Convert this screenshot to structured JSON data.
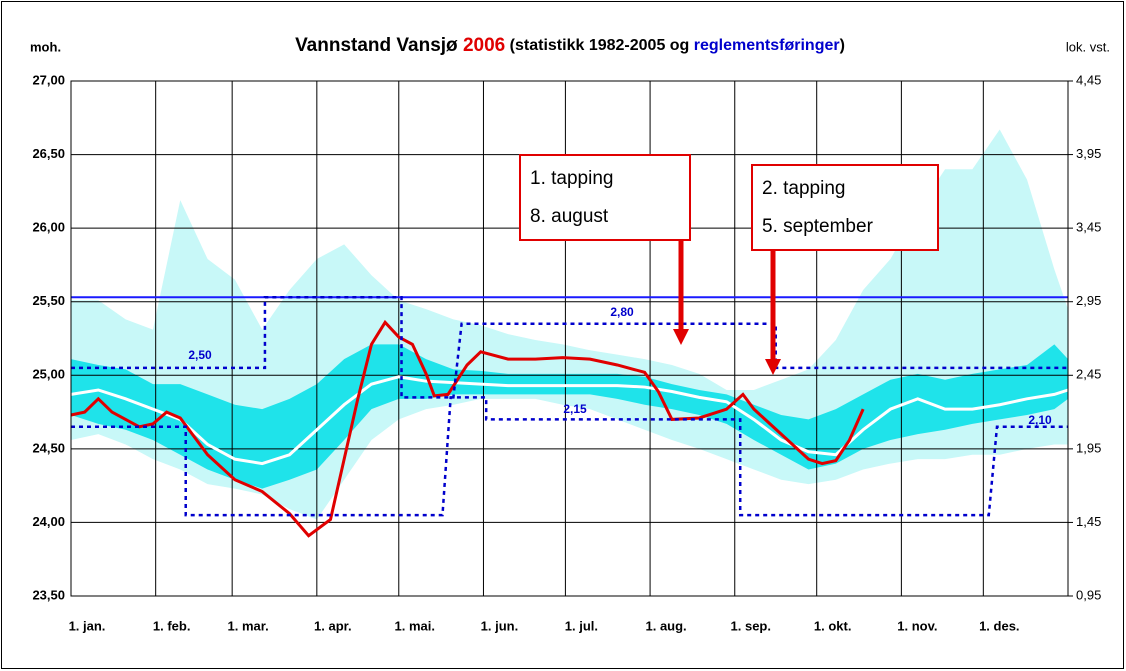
{
  "chart_data": {
    "type": "line",
    "title": [
      "Vannstand Vansjø ",
      "2006",
      " (statistikk 1982-2005 og ",
      "reglementsføringer",
      ")"
    ],
    "title_colors": [
      "#000000",
      "#e00000",
      "#000000",
      "#0000cc",
      "#000000"
    ],
    "ylabel": "moh.",
    "y2label": "lok. vst.",
    "xlim": [
      0,
      365
    ],
    "xticks": [
      {
        "value": 0,
        "label": "1. jan."
      },
      {
        "value": 31,
        "label": "1. feb."
      },
      {
        "value": 59,
        "label": "1. mar."
      },
      {
        "value": 90,
        "label": "1. apr."
      },
      {
        "value": 120,
        "label": "1. mai."
      },
      {
        "value": 151,
        "label": "1. jun."
      },
      {
        "value": 181,
        "label": "1. jul."
      },
      {
        "value": 212,
        "label": "1. aug."
      },
      {
        "value": 243,
        "label": "1. sep."
      },
      {
        "value": 273,
        "label": "1. okt."
      },
      {
        "value": 304,
        "label": "1. nov."
      },
      {
        "value": 334,
        "label": "1. des."
      }
    ],
    "ylim": [
      23.5,
      27
    ],
    "yticks": [
      {
        "value": 23.5,
        "label": "23,50"
      },
      {
        "value": 24,
        "label": "24,00"
      },
      {
        "value": 24.5,
        "label": "24,50"
      },
      {
        "value": 25,
        "label": "25,00"
      },
      {
        "value": 25.5,
        "label": "25,50"
      },
      {
        "value": 26,
        "label": "26,00"
      },
      {
        "value": 26.5,
        "label": "26,50"
      },
      {
        "value": 27,
        "label": "27,00"
      }
    ],
    "y2lim": [
      0.95,
      4.45
    ],
    "y2ticks": [
      {
        "value": 0.95,
        "label": "0,95"
      },
      {
        "value": 1.45,
        "label": "1,45"
      },
      {
        "value": 1.95,
        "label": "1,95"
      },
      {
        "value": 2.45,
        "label": "2,45"
      },
      {
        "value": 2.95,
        "label": "2,95"
      },
      {
        "value": 3.45,
        "label": "3,45"
      },
      {
        "value": 3.95,
        "label": "3,95"
      },
      {
        "value": 4.45,
        "label": "4,45"
      }
    ],
    "grid": true,
    "band_x": [
      0,
      10,
      20,
      30,
      40,
      50,
      60,
      70,
      80,
      90,
      100,
      110,
      120,
      130,
      140,
      150,
      160,
      170,
      180,
      190,
      200,
      210,
      220,
      230,
      240,
      250,
      260,
      270,
      280,
      290,
      300,
      310,
      320,
      330,
      340,
      350,
      360,
      365
    ],
    "bands": [
      {
        "color": "#c8f8f8",
        "upper": [
          25.51,
          25.51,
          25.38,
          25.31,
          26.19,
          25.79,
          25.65,
          25.31,
          25.58,
          25.79,
          25.89,
          25.68,
          25.51,
          25.45,
          25.38,
          25.34,
          25.28,
          25.24,
          25.21,
          25.17,
          25.14,
          25.11,
          25.07,
          25.01,
          24.9,
          24.9,
          24.97,
          25.04,
          25.24,
          25.58,
          25.79,
          26.12,
          26.4,
          26.4,
          26.67,
          26.33,
          25.72,
          25.45
        ],
        "lower": [
          24.56,
          24.6,
          24.53,
          24.43,
          24.36,
          24.26,
          24.23,
          24.19,
          24.09,
          24.02,
          24.29,
          24.56,
          24.7,
          24.77,
          24.8,
          24.84,
          24.84,
          24.84,
          24.8,
          24.77,
          24.7,
          24.63,
          24.56,
          24.5,
          24.43,
          24.36,
          24.29,
          24.26,
          24.29,
          24.36,
          24.4,
          24.43,
          24.43,
          24.46,
          24.46,
          24.5,
          24.53,
          24.53
        ]
      },
      {
        "color": "#1fe3ea",
        "upper": [
          25.11,
          25.07,
          25.04,
          24.94,
          24.94,
          24.87,
          24.8,
          24.77,
          24.84,
          24.94,
          25.11,
          25.21,
          25.21,
          25.11,
          25.04,
          25.03,
          25.01,
          25.01,
          25.01,
          25.01,
          25.01,
          24.99,
          24.94,
          24.9,
          24.87,
          24.8,
          24.73,
          24.7,
          24.77,
          24.87,
          24.97,
          25.01,
          24.97,
          25.01,
          25.04,
          25.07,
          25.21,
          25.11
        ],
        "lower": [
          24.73,
          24.67,
          24.63,
          24.56,
          24.46,
          24.36,
          24.29,
          24.23,
          24.29,
          24.36,
          24.56,
          24.77,
          24.84,
          24.84,
          24.87,
          24.87,
          24.87,
          24.87,
          24.87,
          24.87,
          24.84,
          24.8,
          24.77,
          24.73,
          24.67,
          24.56,
          24.46,
          24.36,
          24.4,
          24.5,
          24.56,
          24.6,
          24.63,
          24.67,
          24.7,
          24.73,
          24.77,
          24.84
        ]
      }
    ],
    "series": [
      {
        "color": "#ffffff",
        "width": 3,
        "x": [
          0,
          10,
          20,
          30,
          40,
          50,
          60,
          70,
          80,
          90,
          100,
          110,
          120,
          130,
          140,
          150,
          160,
          170,
          180,
          190,
          200,
          210,
          220,
          230,
          240,
          250,
          260,
          270,
          280,
          290,
          300,
          310,
          320,
          330,
          340,
          350,
          360,
          365
        ],
        "values": [
          24.87,
          24.9,
          24.84,
          24.77,
          24.7,
          24.53,
          24.43,
          24.4,
          24.46,
          24.63,
          24.8,
          24.94,
          24.99,
          24.96,
          24.95,
          24.94,
          24.93,
          24.93,
          24.93,
          24.93,
          24.93,
          24.92,
          24.89,
          24.85,
          24.82,
          24.7,
          24.56,
          24.48,
          24.46,
          24.63,
          24.77,
          24.84,
          24.77,
          24.77,
          24.8,
          24.84,
          24.87,
          24.9
        ]
      },
      {
        "color": "#e00000",
        "width": 3,
        "x": [
          0,
          5,
          10,
          15,
          20,
          25,
          30,
          35,
          40,
          50,
          60,
          70,
          80,
          87,
          95,
          100,
          105,
          110,
          115,
          120,
          125,
          130,
          133,
          138,
          145,
          150,
          160,
          170,
          180,
          190,
          200,
          210,
          215,
          220,
          230,
          240,
          246,
          250,
          260,
          270,
          275,
          280,
          285,
          290
        ],
        "values": [
          24.73,
          24.75,
          24.84,
          24.75,
          24.7,
          24.65,
          24.67,
          24.75,
          24.71,
          24.46,
          24.29,
          24.21,
          24.06,
          23.91,
          24.02,
          24.43,
          24.84,
          25.21,
          25.36,
          25.26,
          25.21,
          25.01,
          24.86,
          24.87,
          25.07,
          25.16,
          25.11,
          25.11,
          25.12,
          25.11,
          25.07,
          25.02,
          24.89,
          24.7,
          24.71,
          24.77,
          24.87,
          24.77,
          24.6,
          24.43,
          24.4,
          24.42,
          24.56,
          24.77
        ]
      },
      {
        "color": "#1a1aff",
        "width": 2,
        "x": [
          0,
          365
        ],
        "values": [
          25.53,
          25.53
        ]
      },
      {
        "color": "#0000cc",
        "width": 2.5,
        "dash": true,
        "x": [
          0,
          71,
          71,
          121,
          121,
          140,
          143,
          258,
          258,
          365
        ],
        "values": [
          25.05,
          25.05,
          25.53,
          25.53,
          24.85,
          24.85,
          25.35,
          25.35,
          25.05,
          25.05
        ]
      },
      {
        "color": "#0000cc",
        "width": 2.5,
        "dash": true,
        "x": [
          0,
          42,
          42,
          136,
          139,
          152,
          152,
          245,
          245,
          336,
          339,
          365
        ],
        "values": [
          24.65,
          24.65,
          24.05,
          24.05,
          24.85,
          24.85,
          24.7,
          24.7,
          24.05,
          24.05,
          24.65,
          24.65
        ]
      }
    ],
    "annotations": [
      "2,50",
      "2,80",
      "2,15",
      "2,10"
    ],
    "callouts": [
      [
        "1. tapping",
        "8. august"
      ],
      [
        "2. tapping",
        "5. september"
      ]
    ]
  }
}
